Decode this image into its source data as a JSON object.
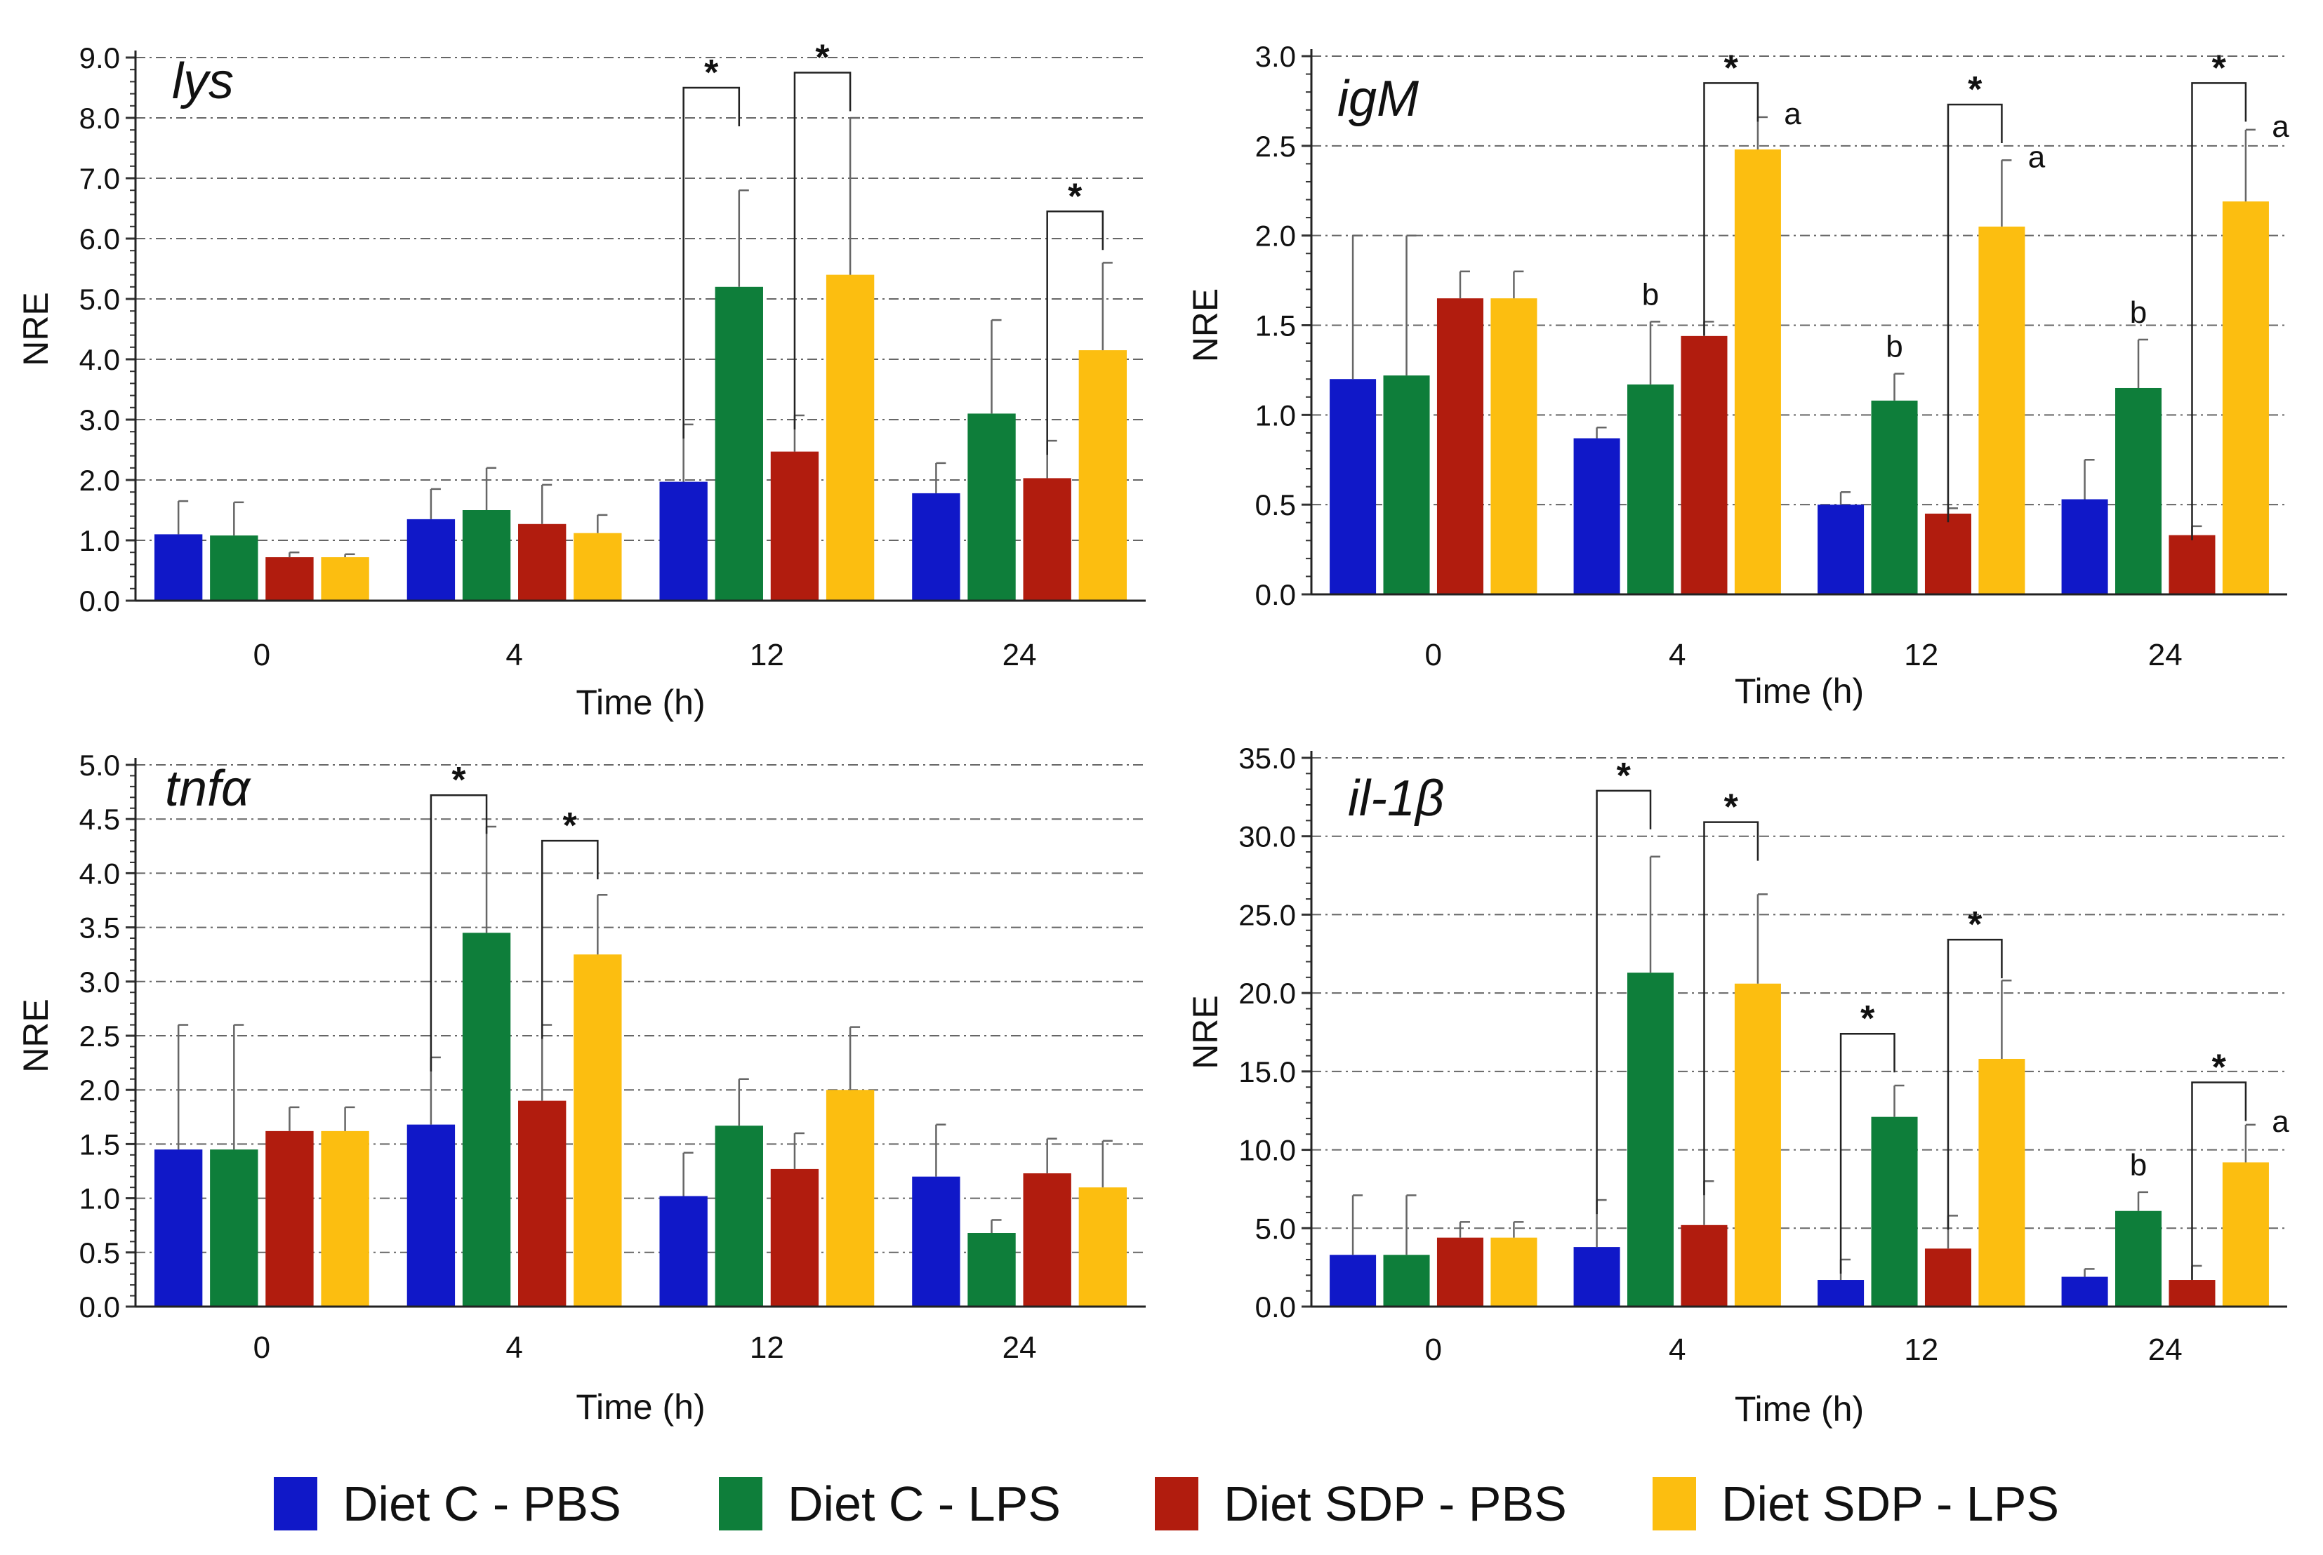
{
  "series_colors": [
    "#1018c8",
    "#0e7e3a",
    "#b11c0e",
    "#fcbe10"
  ],
  "legend": [
    "Diet C - PBS",
    "Diet C - LPS",
    "Diet SDP - PBS",
    "Diet SDP - LPS"
  ],
  "chart_data": [
    {
      "type": "bar",
      "title": "lys",
      "xlabel": "Time (h)",
      "ylabel": "NRE",
      "categories": [
        "0",
        "4",
        "12",
        "24"
      ],
      "ylim": [
        0,
        9
      ],
      "yticks": [
        "0.0",
        "1.0",
        "2.0",
        "3.0",
        "4.0",
        "5.0",
        "6.0",
        "7.0",
        "8.0",
        "9.0"
      ],
      "ytick_values": [
        0,
        1,
        2,
        3,
        4,
        5,
        6,
        7,
        8,
        9
      ],
      "grid": true,
      "series": [
        {
          "name": "Diet C - PBS",
          "values": [
            1.1,
            1.35,
            1.97,
            1.78
          ],
          "errors": [
            0.55,
            0.5,
            0.95,
            0.5
          ]
        },
        {
          "name": "Diet C - LPS",
          "values": [
            1.08,
            1.5,
            5.2,
            3.1
          ],
          "errors": [
            0.55,
            0.7,
            1.6,
            1.55
          ]
        },
        {
          "name": "Diet SDP - PBS",
          "values": [
            0.72,
            1.27,
            2.47,
            2.03
          ],
          "errors": [
            0.08,
            0.65,
            0.6,
            0.62
          ]
        },
        {
          "name": "Diet SDP - LPS",
          "values": [
            0.72,
            1.12,
            5.4,
            4.15
          ],
          "errors": [
            0.05,
            0.3,
            2.6,
            1.45
          ]
        }
      ],
      "significance": [
        {
          "category": "12",
          "from": 0,
          "to": 1,
          "bracket": 8.5,
          "label": "*"
        },
        {
          "category": "12",
          "from": 2,
          "to": 3,
          "bracket": 8.75,
          "label": "*"
        },
        {
          "category": "24",
          "from": 2,
          "to": 3,
          "bracket": 6.45,
          "label": "*"
        }
      ],
      "annotations": []
    },
    {
      "type": "bar",
      "title": "igM",
      "xlabel": "Time (h)",
      "ylabel": "NRE",
      "categories": [
        "0",
        "4",
        "12",
        "24"
      ],
      "ylim": [
        0,
        3
      ],
      "yticks": [
        "0.0",
        "0.5",
        "1.0",
        "1.5",
        "2.0",
        "2.5",
        "3.0"
      ],
      "ytick_values": [
        0,
        0.5,
        1,
        1.5,
        2,
        2.5,
        3
      ],
      "grid": true,
      "series": [
        {
          "name": "Diet C - PBS",
          "values": [
            1.2,
            0.87,
            0.5,
            0.53
          ],
          "errors": [
            0.8,
            0.06,
            0.07,
            0.22
          ]
        },
        {
          "name": "Diet C - LPS",
          "values": [
            1.22,
            1.17,
            1.08,
            1.15
          ],
          "errors": [
            0.78,
            0.35,
            0.15,
            0.27
          ]
        },
        {
          "name": "Diet SDP - PBS",
          "values": [
            1.65,
            1.44,
            0.45,
            0.33
          ],
          "errors": [
            0.15,
            0.08,
            0.03,
            0.05
          ]
        },
        {
          "name": "Diet SDP - LPS",
          "values": [
            1.65,
            2.48,
            2.05,
            2.19
          ],
          "errors": [
            0.15,
            0.18,
            0.37,
            0.4
          ]
        }
      ],
      "significance": [
        {
          "category": "4",
          "from": 2,
          "to": 3,
          "bracket": 2.85,
          "label": "*"
        },
        {
          "category": "12",
          "from": 2,
          "to": 3,
          "bracket": 2.73,
          "label": "*"
        },
        {
          "category": "24",
          "from": 2,
          "to": 3,
          "bracket": 2.85,
          "label": "*"
        }
      ],
      "annotations": [
        {
          "category": "4",
          "bar": 1,
          "label": "b"
        },
        {
          "category": "4",
          "bar": 3,
          "label": "a"
        },
        {
          "category": "12",
          "bar": 1,
          "label": "b"
        },
        {
          "category": "12",
          "bar": 3,
          "label": "a"
        },
        {
          "category": "24",
          "bar": 1,
          "label": "b"
        },
        {
          "category": "24",
          "bar": 3,
          "label": "a"
        }
      ]
    },
    {
      "type": "bar",
      "title": "tnfα",
      "xlabel": "Time (h)",
      "ylabel": "NRE",
      "categories": [
        "0",
        "4",
        "12",
        "24"
      ],
      "ylim": [
        0,
        5
      ],
      "yticks": [
        "0.0",
        "0.5",
        "1.0",
        "1.5",
        "2.0",
        "2.5",
        "3.0",
        "3.5",
        "4.0",
        "4.5",
        "5.0"
      ],
      "ytick_values": [
        0,
        0.5,
        1,
        1.5,
        2,
        2.5,
        3,
        3.5,
        4,
        4.5,
        5
      ],
      "grid": true,
      "series": [
        {
          "name": "Diet C - PBS",
          "values": [
            1.45,
            1.68,
            1.02,
            1.2
          ],
          "errors": [
            1.15,
            0.62,
            0.4,
            0.48
          ]
        },
        {
          "name": "Diet C - LPS",
          "values": [
            1.45,
            3.45,
            1.67,
            0.68
          ],
          "errors": [
            1.15,
            0.98,
            0.43,
            0.12
          ]
        },
        {
          "name": "Diet SDP - PBS",
          "values": [
            1.62,
            1.9,
            1.27,
            1.23
          ],
          "errors": [
            0.22,
            0.7,
            0.33,
            0.32
          ]
        },
        {
          "name": "Diet SDP - LPS",
          "values": [
            1.62,
            3.25,
            2.0,
            1.1
          ],
          "errors": [
            0.22,
            0.55,
            0.58,
            0.43
          ]
        }
      ],
      "significance": [
        {
          "category": "4",
          "from": 0,
          "to": 1,
          "bracket": 4.72,
          "label": "*"
        },
        {
          "category": "4",
          "from": 2,
          "to": 3,
          "bracket": 4.3,
          "label": "*"
        }
      ],
      "annotations": []
    },
    {
      "type": "bar",
      "title": "il-1β",
      "xlabel": "Time (h)",
      "ylabel": "NRE",
      "categories": [
        "0",
        "4",
        "12",
        "24"
      ],
      "ylim": [
        0,
        35
      ],
      "yticks": [
        "0.0",
        "5.0",
        "10.0",
        "15.0",
        "20.0",
        "25.0",
        "30.0",
        "35.0"
      ],
      "ytick_values": [
        0,
        5,
        10,
        15,
        20,
        25,
        30,
        35
      ],
      "grid": true,
      "series": [
        {
          "name": "Diet C - PBS",
          "values": [
            3.3,
            3.8,
            1.7,
            1.9
          ],
          "errors": [
            3.8,
            3.0,
            1.3,
            0.5
          ]
        },
        {
          "name": "Diet C - LPS",
          "values": [
            3.3,
            21.3,
            12.1,
            6.1
          ],
          "errors": [
            3.8,
            7.4,
            2.0,
            1.2
          ]
        },
        {
          "name": "Diet SDP - PBS",
          "values": [
            4.4,
            5.2,
            3.7,
            1.7
          ],
          "errors": [
            1.0,
            2.8,
            2.1,
            0.9
          ]
        },
        {
          "name": "Diet SDP - LPS",
          "values": [
            4.4,
            20.6,
            15.8,
            9.2
          ],
          "errors": [
            1.0,
            5.7,
            5.0,
            2.4
          ]
        }
      ],
      "significance": [
        {
          "category": "4",
          "from": 0,
          "to": 1,
          "bracket": 32.9,
          "label": "*"
        },
        {
          "category": "4",
          "from": 2,
          "to": 3,
          "bracket": 30.9,
          "label": "*"
        },
        {
          "category": "12",
          "from": 0,
          "to": 1,
          "bracket": 17.4,
          "label": "*"
        },
        {
          "category": "12",
          "from": 2,
          "to": 3,
          "bracket": 23.4,
          "label": "*"
        },
        {
          "category": "24",
          "from": 2,
          "to": 3,
          "bracket": 14.3,
          "label": "*"
        }
      ],
      "annotations": [
        {
          "category": "24",
          "bar": 1,
          "label": "b"
        },
        {
          "category": "24",
          "bar": 3,
          "label": "a"
        }
      ]
    }
  ]
}
